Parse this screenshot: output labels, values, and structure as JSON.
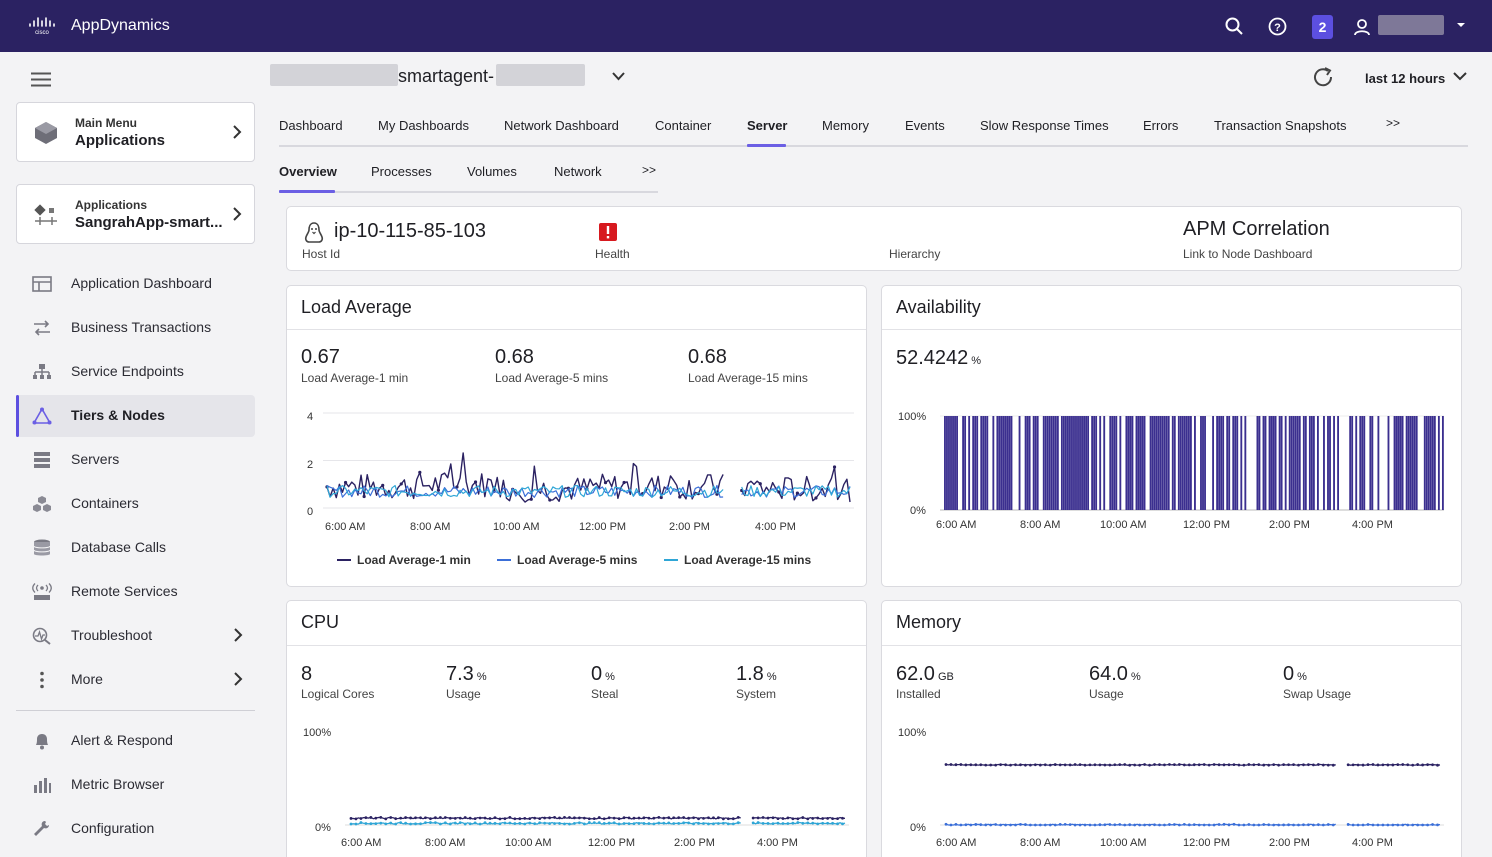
{
  "topbar": {
    "app_name": "AppDynamics",
    "logo_icon": "cisco-logo",
    "notification_count": "2",
    "accent": "#2b2262"
  },
  "sidebar": {
    "main_menu": {
      "small": "Main Menu",
      "big": "Applications"
    },
    "app_card": {
      "small": "Applications",
      "big": "SangrahApp-smart..."
    },
    "items": [
      {
        "label": "Application Dashboard",
        "icon": "dashboard-icon"
      },
      {
        "label": "Business Transactions",
        "icon": "transactions-icon"
      },
      {
        "label": "Service Endpoints",
        "icon": "endpoints-icon"
      },
      {
        "label": "Tiers & Nodes",
        "icon": "tiers-nodes-icon",
        "active": true
      },
      {
        "label": "Servers",
        "icon": "servers-icon"
      },
      {
        "label": "Containers",
        "icon": "containers-icon"
      },
      {
        "label": "Database Calls",
        "icon": "database-icon"
      },
      {
        "label": "Remote Services",
        "icon": "remote-services-icon"
      },
      {
        "label": "Troubleshoot",
        "icon": "troubleshoot-icon"
      },
      {
        "label": "More",
        "icon": "more-icon"
      }
    ],
    "bottom_items": [
      {
        "label": "Alert & Respond",
        "icon": "bell-icon"
      },
      {
        "label": "Metric Browser",
        "icon": "metric-browser-icon"
      },
      {
        "label": "Configuration",
        "icon": "wrench-icon"
      }
    ]
  },
  "header": {
    "node_name": "smartagent-",
    "time_range": "last 12 hours"
  },
  "tabs": [
    "Dashboard",
    "My Dashboards",
    "Network Dashboard",
    "Container",
    "Server",
    "Memory",
    "Events",
    "Slow Response Times",
    "Errors",
    "Transaction Snapshots",
    ">>"
  ],
  "active_tab": "Server",
  "subtabs": [
    "Overview",
    "Processes",
    "Volumes",
    "Network",
    ">>"
  ],
  "active_subtab": "Overview",
  "host": {
    "host_id": "ip-10-115-85-103",
    "host_id_label": "Host Id",
    "health_label": "Health",
    "hierarchy_label": "Hierarchy",
    "apm_title": "APM Correlation",
    "apm_link": "Link to Node Dashboard"
  },
  "load_average": {
    "title": "Load Average",
    "metrics": [
      {
        "value": "0.67",
        "label": "Load Average-1 min"
      },
      {
        "value": "0.68",
        "label": "Load Average-5 mins"
      },
      {
        "value": "0.68",
        "label": "Load Average-15 mins"
      }
    ],
    "y_ticks": [
      "4",
      "2",
      "0"
    ],
    "x_ticks": [
      "6:00 AM",
      "8:00 AM",
      "10:00 AM",
      "12:00 PM",
      "2:00 PM",
      "4:00 PM"
    ],
    "legend": [
      {
        "name": "Load Average-1 min",
        "color": "#2b2262"
      },
      {
        "name": "Load Average-5 mins",
        "color": "#3b6fd8"
      },
      {
        "name": "Load Average-15 mins",
        "color": "#2fa6d6"
      }
    ]
  },
  "availability": {
    "title": "Availability",
    "value": "52.4242",
    "unit": "%",
    "y_ticks": [
      "100%",
      "0%"
    ],
    "x_ticks": [
      "6:00 AM",
      "8:00 AM",
      "10:00 AM",
      "12:00 PM",
      "2:00 PM",
      "4:00 PM"
    ],
    "color": "#3b2f8f"
  },
  "cpu": {
    "title": "CPU",
    "metrics": [
      {
        "value": "8",
        "unit": "",
        "label": "Logical Cores"
      },
      {
        "value": "7.3",
        "unit": "%",
        "label": "Usage"
      },
      {
        "value": "0",
        "unit": "%",
        "label": "Steal"
      },
      {
        "value": "1.8",
        "unit": "%",
        "label": "System"
      }
    ],
    "y_ticks": [
      "100%",
      "0%"
    ],
    "x_ticks": [
      "6:00 AM",
      "8:00 AM",
      "10:00 AM",
      "12:00 PM",
      "2:00 PM",
      "4:00 PM"
    ]
  },
  "memory": {
    "title": "Memory",
    "metrics": [
      {
        "value": "62.0",
        "unit": "GB",
        "label": "Installed"
      },
      {
        "value": "64.0",
        "unit": "%",
        "label": "Usage"
      },
      {
        "value": "0",
        "unit": "%",
        "label": "Swap Usage"
      }
    ],
    "y_ticks": [
      "100%",
      "0%"
    ],
    "x_ticks": [
      "6:00 AM",
      "8:00 AM",
      "10:00 AM",
      "12:00 PM",
      "2:00 PM",
      "4:00 PM"
    ]
  },
  "chart_data": [
    {
      "type": "line",
      "title": "Load Average",
      "x": [
        "6:00 AM",
        "8:00 AM",
        "10:00 AM",
        "12:00 PM",
        "2:00 PM",
        "4:00 PM"
      ],
      "ylim": [
        0,
        4
      ],
      "series": [
        {
          "name": "Load Average-1 min",
          "values": [
            0.9,
            1.0,
            0.8,
            0.9,
            0.9,
            0.8
          ]
        },
        {
          "name": "Load Average-5 mins",
          "values": [
            0.7,
            0.7,
            0.7,
            0.7,
            0.7,
            0.7
          ]
        },
        {
          "name": "Load Average-15 mins",
          "values": [
            0.7,
            0.7,
            0.7,
            0.7,
            0.7,
            0.7
          ]
        }
      ]
    },
    {
      "type": "bar",
      "title": "Availability",
      "x": [
        "6:00 AM",
        "8:00 AM",
        "10:00 AM",
        "12:00 PM",
        "2:00 PM",
        "4:00 PM"
      ],
      "ylim": [
        0,
        100
      ],
      "summary_value": 52.4242
    },
    {
      "type": "line",
      "title": "CPU",
      "x": [
        "6:00 AM",
        "8:00 AM",
        "10:00 AM",
        "12:00 PM",
        "2:00 PM",
        "4:00 PM"
      ],
      "ylim": [
        0,
        100
      ],
      "series": [
        {
          "values": [
            7.3,
            7.3,
            7.3,
            7.3,
            7.3,
            7.3
          ]
        },
        {
          "values": [
            1.8,
            1.8,
            1.8,
            1.8,
            1.8,
            1.8
          ]
        }
      ]
    },
    {
      "type": "line",
      "title": "Memory",
      "x": [
        "6:00 AM",
        "8:00 AM",
        "10:00 AM",
        "12:00 PM",
        "2:00 PM",
        "4:00 PM"
      ],
      "ylim": [
        0,
        100
      ],
      "series": [
        {
          "values": [
            64,
            64,
            64,
            64,
            64,
            64
          ]
        },
        {
          "values": [
            0,
            0,
            0,
            0,
            0,
            0
          ]
        }
      ]
    }
  ]
}
